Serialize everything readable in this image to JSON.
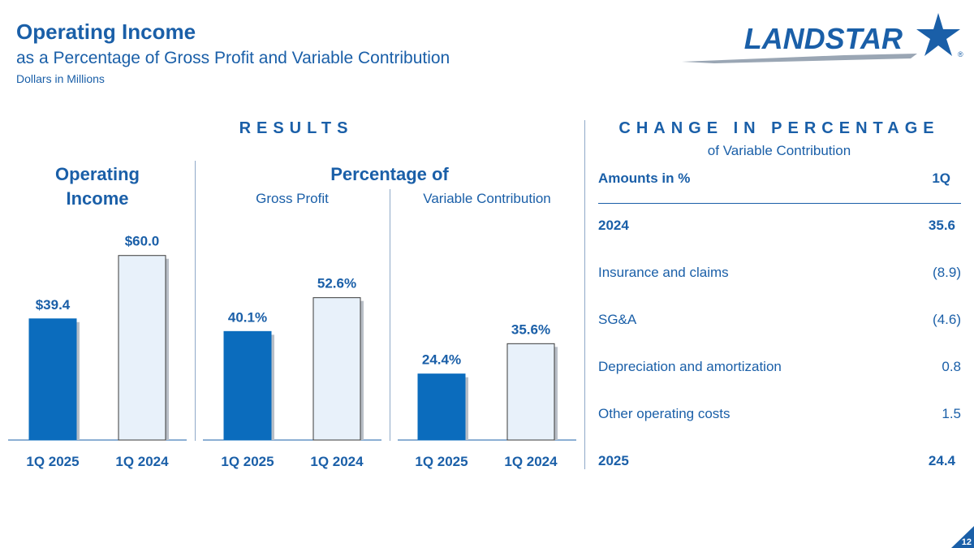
{
  "header": {
    "title": "Operating Income",
    "subtitle": "as a Percentage of Gross Profit and Variable Contribution",
    "units": "Dollars in Millions"
  },
  "logo": {
    "text": "LANDSTAR",
    "registered": "®",
    "icon": "star-logo-icon"
  },
  "results": {
    "heading": "RESULTS",
    "operating_income_title_line1": "Operating",
    "operating_income_title_line2": "Income",
    "percentage_title": "Percentage of",
    "gross_profit_label": "Gross Profit",
    "variable_contribution_label": "Variable Contribution"
  },
  "change": {
    "heading": "CHANGE IN PERCENTAGE",
    "subheading": "of Variable Contribution",
    "header_label": "Amounts in %",
    "header_col": "1Q",
    "rows": [
      {
        "label": "2024",
        "value": "35.6"
      },
      {
        "label": "Insurance and claims",
        "value": "(8.9)"
      },
      {
        "label": "SG&A",
        "value": "(4.6)"
      },
      {
        "label": "Depreciation and amortization",
        "value": "0.8"
      },
      {
        "label": "Other operating costs",
        "value": "1.5"
      },
      {
        "label": "2025",
        "value": "24.4"
      }
    ]
  },
  "colors": {
    "primary": "#1a5fa8",
    "bar_current": "#0b6cbd",
    "bar_prior": "#e8f1fa",
    "bar_outline": "#3a3a3a"
  },
  "page_number": "12",
  "chart_data": [
    {
      "type": "bar",
      "categories": [
        "1Q 2025",
        "1Q 2024"
      ],
      "values": [
        39.4,
        60.0
      ],
      "data_labels": [
        "$39.4",
        "$60.0"
      ],
      "title": "Operating Income",
      "ylim": [
        0,
        66
      ]
    },
    {
      "type": "bar",
      "categories": [
        "1Q 2025",
        "1Q 2024"
      ],
      "values": [
        40.1,
        52.6
      ],
      "data_labels": [
        "40.1%",
        "52.6%"
      ],
      "title": "Gross Profit",
      "ylim": [
        0,
        75
      ]
    },
    {
      "type": "bar",
      "categories": [
        "1Q 2025",
        "1Q 2024"
      ],
      "values": [
        24.4,
        35.6
      ],
      "data_labels": [
        "24.4%",
        "35.6%"
      ],
      "title": "Variable Contribution",
      "ylim": [
        0,
        75
      ]
    }
  ]
}
